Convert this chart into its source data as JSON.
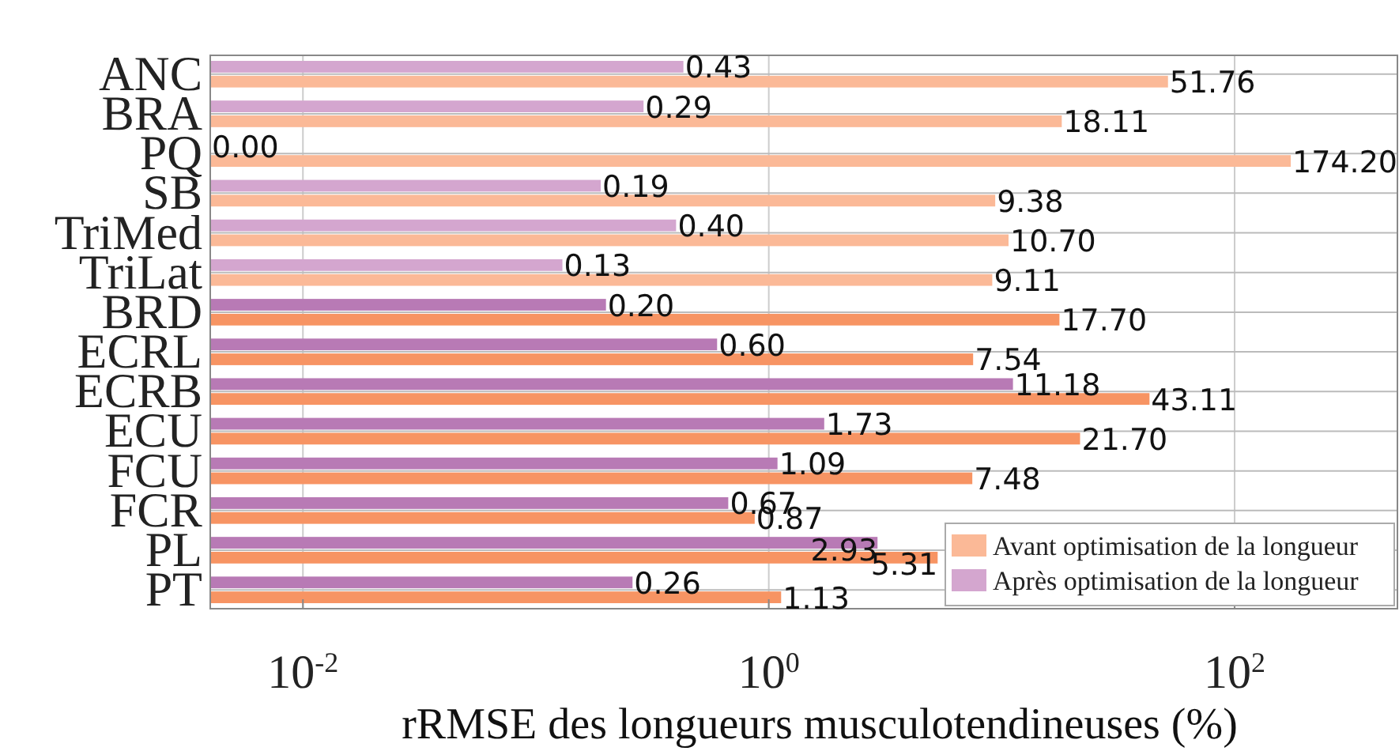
{
  "chart_data": {
    "type": "bar",
    "orientation": "horizontal",
    "log": "x",
    "grid": true,
    "legend": "bottom right",
    "xlabel": "rRMSE des longueurs musculotendineuses (%)",
    "categories": [
      "ANC",
      "BRA",
      "PQ",
      "SB",
      "TriMed",
      "TriLat",
      "BRD",
      "ECRL",
      "ECRB",
      "ECU",
      "FCU",
      "FCR",
      "PL",
      "PT"
    ],
    "xlim": [
      0.004,
      500
    ],
    "xticks": [
      {
        "value": 0.01,
        "label": "10$^{-2}$"
      },
      {
        "value": 1,
        "label": "10$^{0}$"
      },
      {
        "value": 100,
        "label": "10$^{2}$"
      }
    ],
    "series": [
      {
        "name": "Avant optimisation de la longueur",
        "color": "#fbb997",
        "colors": [
          "#fbb997",
          "#fbb997",
          "#fbb997",
          "#fbb997",
          "#fbb997",
          "#fbb997",
          "#f79463",
          "#f79463",
          "#f79463",
          "#f79463",
          "#f79463",
          "#f79463",
          "#f79463",
          "#f79463"
        ],
        "values": [
          51.76,
          18.11,
          174.2,
          9.38,
          10.7,
          9.11,
          17.7,
          7.54,
          43.11,
          21.7,
          7.48,
          0.87,
          5.31,
          1.13
        ],
        "value_labels": [
          "51.76",
          "18.11",
          "174.20",
          "9.38",
          "10.70",
          "9.11",
          "17.70",
          "7.54",
          "43.11",
          "21.70",
          "7.48",
          "0.87",
          "5.31",
          "1.13"
        ]
      },
      {
        "name": "Après optimisation de la longueur",
        "color": "#d4a6cf",
        "colors": [
          "#d4a6cf",
          "#d4a6cf",
          null,
          "#d4a6cf",
          "#d4a6cf",
          "#d4a6cf",
          "#b87ab5",
          "#b87ab5",
          "#b87ab5",
          "#b87ab5",
          "#b87ab5",
          "#b87ab5",
          "#b87ab5",
          "#b87ab5"
        ],
        "values": [
          0.43,
          0.29,
          null,
          0.19,
          0.4,
          0.13,
          0.2,
          0.6,
          11.18,
          1.73,
          1.09,
          0.67,
          2.93,
          0.26
        ],
        "value_labels": [
          "0.43",
          "0.29",
          "0.00",
          "0.19",
          "0.40",
          "0.13",
          "0.20",
          "0.60",
          "11.18",
          "1.73",
          "1.09",
          "0.67",
          "2.93",
          "0.26"
        ]
      }
    ]
  }
}
